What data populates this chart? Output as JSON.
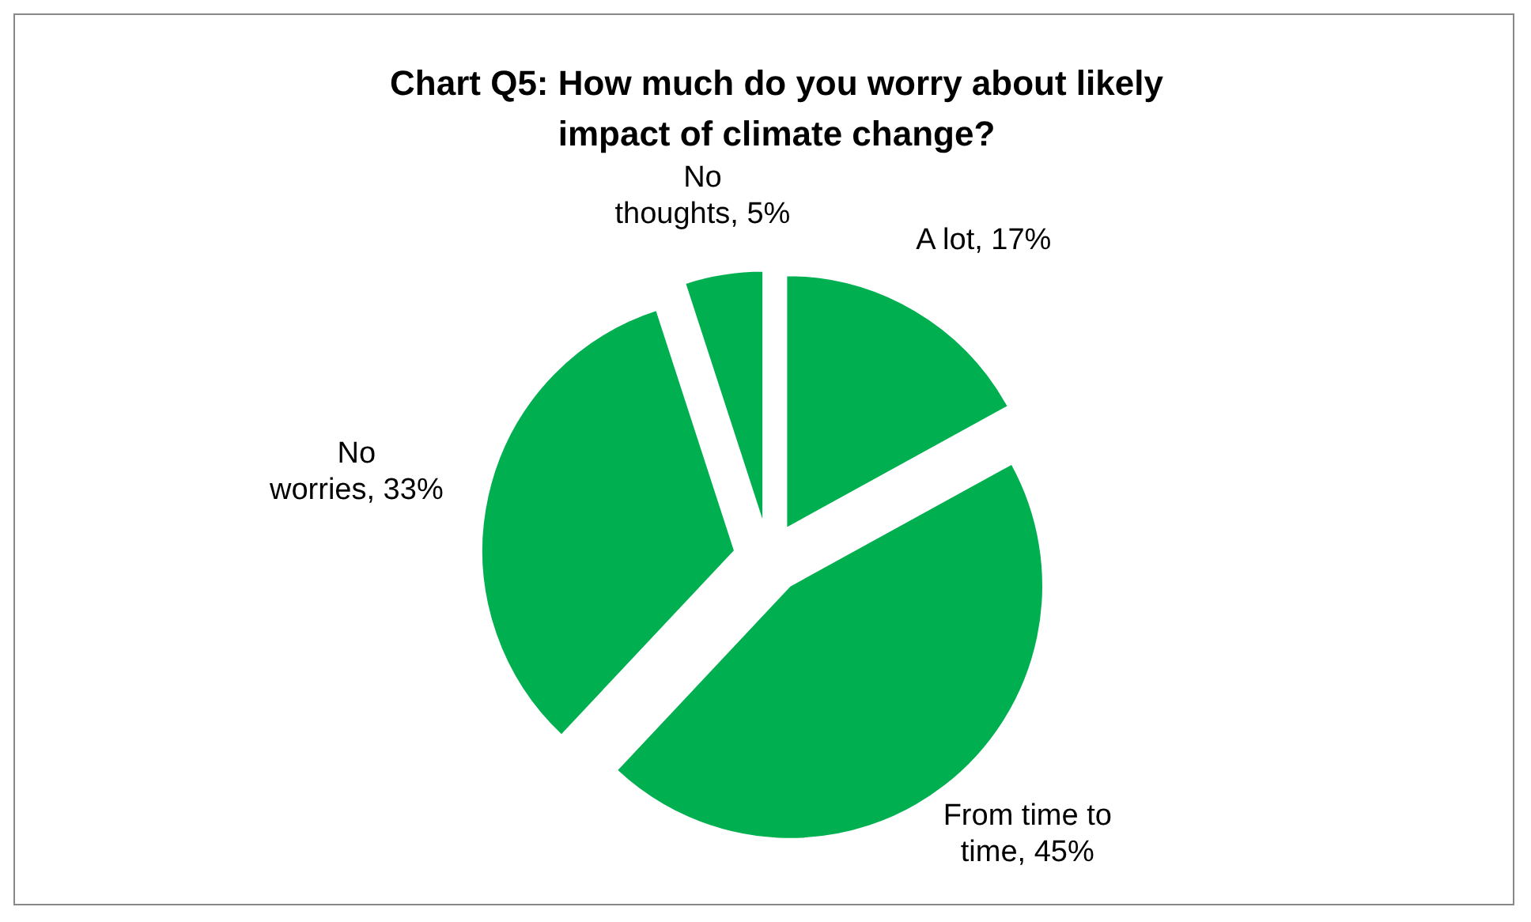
{
  "chart_data": {
    "type": "pie",
    "title": "Chart Q5: How much do you worry about likely impact of climate change?",
    "categories": [
      "A lot",
      "From time to time",
      "No worries",
      "No thoughts"
    ],
    "values": [
      17,
      45,
      33,
      5
    ],
    "value_labels": [
      "17%",
      "45%",
      "33%",
      "5%"
    ],
    "colors": [
      "#00b050",
      "#00b050",
      "#00b050",
      "#00b050"
    ]
  }
}
